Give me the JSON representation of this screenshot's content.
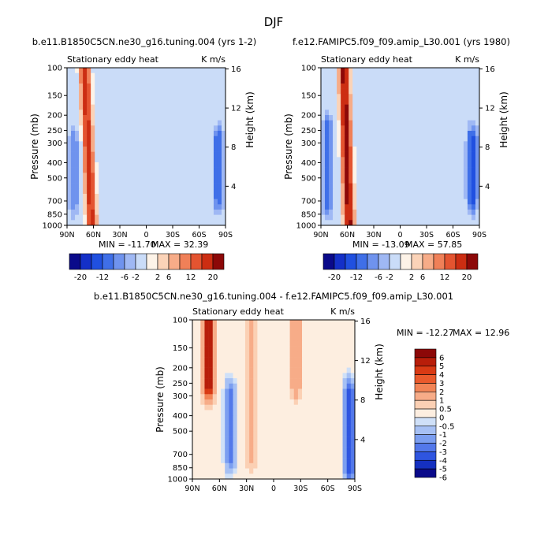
{
  "figure": {
    "title": "DJF"
  },
  "chart_data": [
    {
      "type": "heatmap",
      "panel": "left",
      "title": "b.e11.B1850C5CN.ne30_g16.tuning.004 (yrs 1-2)",
      "left_label": "Stationary eddy heat",
      "units": "K m/s",
      "ylabel": "Pressure (mb)",
      "y2label": "Height (km)",
      "x_ticks": [
        "90N",
        "60N",
        "30N",
        "0",
        "30S",
        "60S",
        "90S"
      ],
      "y_ticks": [
        100,
        150,
        200,
        250,
        300,
        400,
        500,
        700,
        850,
        1000
      ],
      "y2_ticks": [
        16,
        12,
        8,
        4
      ],
      "min_text": "MIN = -11.70",
      "max_text": "MAX =  32.39",
      "colorbar_ticks": [
        "-20",
        "-12",
        "-6",
        "-2",
        "2",
        "6",
        "12",
        "20"
      ],
      "features": [
        {
          "lat": 62,
          "p_top": 100,
          "p_bot": 1000,
          "value": 18,
          "lat_shift_top": 8
        },
        {
          "lat": 82,
          "p_top": 300,
          "p_bot": 700,
          "value": -6
        },
        {
          "lat": -82,
          "p_top": 300,
          "p_bot": 650,
          "value": -9
        }
      ]
    },
    {
      "type": "heatmap",
      "panel": "right",
      "title": "f.e12.FAMIPC5.f09_f09.amip_L30.001 (yrs 1980)",
      "left_label": "Stationary eddy heat",
      "units": "K m/s",
      "ylabel": "Pressure (mb)",
      "y2label": "Height (km)",
      "x_ticks": [
        "90N",
        "60N",
        "30N",
        "0",
        "30S",
        "60S",
        "90S"
      ],
      "y_ticks": [
        100,
        150,
        200,
        250,
        300,
        400,
        500,
        700,
        850,
        1000
      ],
      "y2_ticks": [
        16,
        12,
        8,
        4
      ],
      "min_text": "MIN = -13.09",
      "max_text": "MAX =  57.85",
      "colorbar_ticks": [
        "-20",
        "-12",
        "-6",
        "-2",
        "2",
        "6",
        "12",
        "20"
      ],
      "features": [
        {
          "lat": 58,
          "p_top": 100,
          "p_bot": 1000,
          "value": 22,
          "lat_shift_top": 6
        },
        {
          "lat": 82,
          "p_top": 250,
          "p_bot": 700,
          "value": -8
        },
        {
          "lat": -82,
          "p_top": 300,
          "p_bot": 650,
          "value": -11
        }
      ]
    },
    {
      "type": "heatmap",
      "panel": "difference",
      "title": "b.e11.B1850C5CN.ne30_g16.tuning.004 - f.e12.FAMIPC5.f09_f09.amip_L30.001",
      "left_label": "Stationary eddy heat",
      "units": "K m/s",
      "ylabel": "Pressure (mb)",
      "y2label": "Height (km)",
      "x_ticks": [
        "90N",
        "60N",
        "30N",
        "0",
        "30S",
        "60S",
        "90S"
      ],
      "y_ticks": [
        100,
        150,
        200,
        250,
        300,
        400,
        500,
        700,
        850,
        1000
      ],
      "y2_ticks": [
        16,
        12,
        8,
        4
      ],
      "min_text": "MIN = -12.27",
      "max_text": "MAX =  12.96",
      "colorbar_ticks": [
        "6",
        "5",
        "4",
        "3",
        "2",
        "1",
        "0.5",
        "0",
        "-0.5",
        "-1",
        "-2",
        "-3",
        "-4",
        "-5",
        "-6"
      ],
      "features": [
        {
          "lat": 72,
          "p_top": 100,
          "p_bot": 250,
          "value": 6
        },
        {
          "lat": 48,
          "p_top": 300,
          "p_bot": 700,
          "value": -4
        },
        {
          "lat": 25,
          "p_top": 100,
          "p_bot": 700,
          "value": 1.5
        },
        {
          "lat": -25,
          "p_top": 100,
          "p_bot": 250,
          "value": 2
        },
        {
          "lat": -84,
          "p_top": 300,
          "p_bot": 850,
          "value": -5
        }
      ]
    }
  ],
  "colors": {
    "contour_scale": [
      "#0a0a8a",
      "#1430c8",
      "#2050e0",
      "#3f6fe8",
      "#6f93ee",
      "#9fb8f4",
      "#cadcf8",
      "#fdf3e8",
      "#fbd3b8",
      "#f7ac88",
      "#f08058",
      "#e45430",
      "#cc2d12",
      "#8c0808"
    ],
    "diff_scale": [
      "#8c0808",
      "#b81e0a",
      "#d93a14",
      "#ea5a2c",
      "#f28456",
      "#f7ac88",
      "#fbd0b4",
      "#fdeee0",
      "#cfe0f8",
      "#a6c0f4",
      "#7b9ef0",
      "#5378ea",
      "#2f55e0",
      "#1530c0",
      "#0a0a8a"
    ]
  }
}
